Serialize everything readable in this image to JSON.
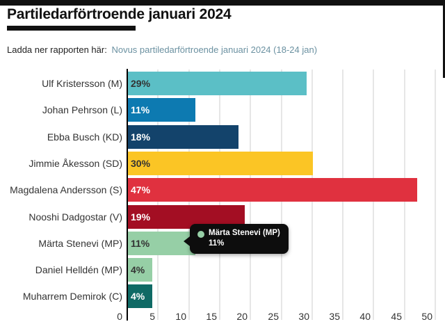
{
  "header": {
    "title": "Partiledarförtroende januari 2024",
    "download_prefix": "Ladda ner rapporten här:",
    "download_link_text": "Novus partiledarförtroende januari 2024 (18-24 jan)"
  },
  "colors": {
    "link": "#6B91A1",
    "text": "#333333",
    "title": "#111111",
    "grid": "#e6e6e6",
    "axis": "#000000",
    "tooltip_bg": "#0d0d0d"
  },
  "chart_data": {
    "type": "bar",
    "orientation": "horizontal",
    "title": "Partiledarförtroende januari 2024",
    "xlabel": "",
    "ylabel": "",
    "xlim": [
      0,
      50
    ],
    "xticks": [
      0,
      5,
      10,
      15,
      20,
      25,
      30,
      35,
      40,
      45,
      50
    ],
    "grid": true,
    "legend": false,
    "categories": [
      "Ulf Kristersson (M)",
      "Johan Pehrson (L)",
      "Ebba Busch (KD)",
      "Jimmie Åkesson (SD)",
      "Magdalena Andersson (S)",
      "Nooshi Dadgostar (V)",
      "Märta Stenevi (MP)",
      "Daniel Helldén (MP)",
      "Muharrem Demirok (C)"
    ],
    "values": [
      29,
      11,
      18,
      30,
      47,
      19,
      11,
      4,
      4
    ],
    "value_labels": [
      "29%",
      "11%",
      "18%",
      "30%",
      "47%",
      "19%",
      "11%",
      "4%",
      "4%"
    ],
    "bar_colors": [
      "#5BBFC6",
      "#0D7AB1",
      "#13436B",
      "#FBC525",
      "#E0313F",
      "#A30E23",
      "#96CFA6",
      "#96CFA6",
      "#0F6A65"
    ],
    "value_label_colors": [
      "#333333",
      "#ffffff",
      "#ffffff",
      "#333333",
      "#ffffff",
      "#ffffff",
      "#333333",
      "#333333",
      "#ffffff"
    ],
    "tooltip": {
      "label": "Märta Stenevi (MP)",
      "value": "11%",
      "dot_color": "#96CFA6"
    }
  }
}
